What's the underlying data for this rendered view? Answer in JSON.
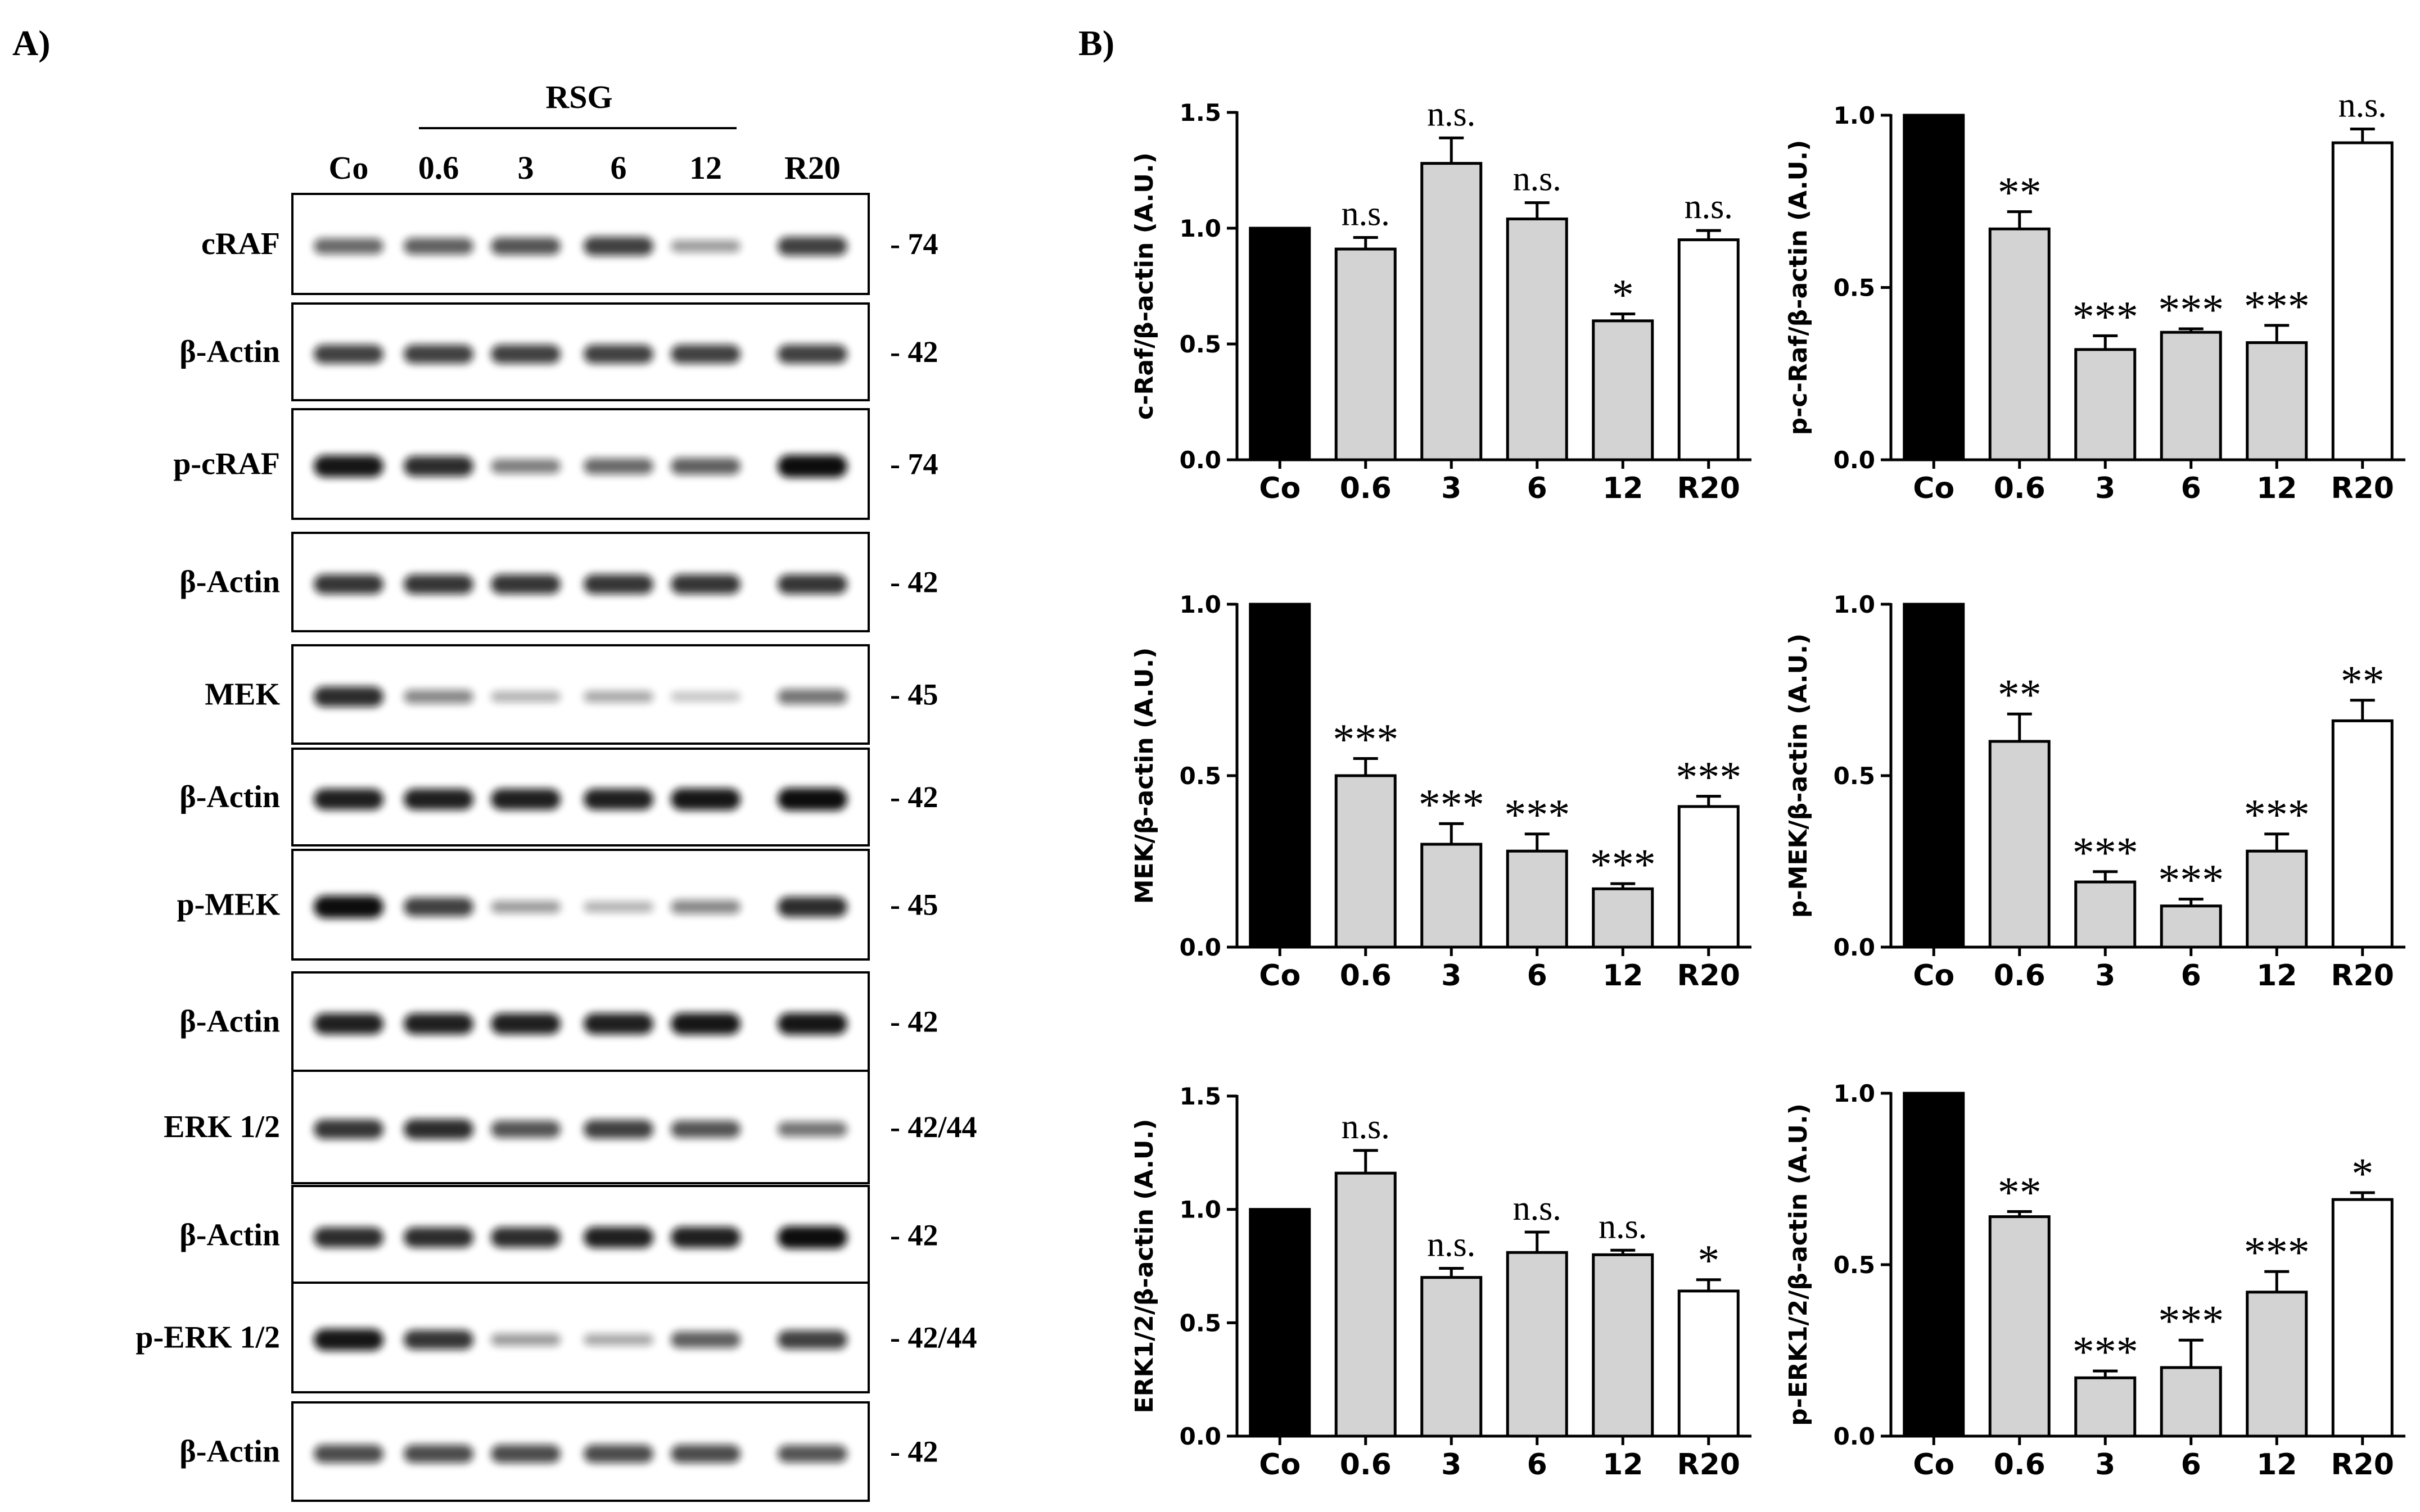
{
  "panels": {
    "a_label": "A)",
    "b_label": "B)"
  },
  "blot": {
    "group_label": "RSG",
    "lanes": [
      "Co",
      "0.6",
      "3",
      "6",
      "12",
      "R20"
    ],
    "rows": [
      {
        "label": "cRAF",
        "mw": "- 74",
        "intensity": [
          0.55,
          0.6,
          0.65,
          0.75,
          0.3,
          0.75
        ]
      },
      {
        "label": "β-Actin",
        "mw": "- 42",
        "intensity": [
          0.75,
          0.75,
          0.75,
          0.75,
          0.75,
          0.75
        ]
      },
      {
        "label": "p-cRAF",
        "mw": "- 74",
        "intensity": [
          0.95,
          0.85,
          0.45,
          0.55,
          0.6,
          1.0
        ]
      },
      {
        "label": "β-Actin",
        "mw": "- 42",
        "intensity": [
          0.8,
          0.8,
          0.8,
          0.8,
          0.8,
          0.8
        ]
      },
      {
        "label": "MEK",
        "mw": "- 45",
        "intensity": [
          0.85,
          0.4,
          0.2,
          0.25,
          0.12,
          0.5
        ]
      },
      {
        "label": "β-Actin",
        "mw": "- 42",
        "intensity": [
          0.9,
          0.9,
          0.9,
          0.9,
          0.95,
          1.0
        ]
      },
      {
        "label": "p-MEK",
        "mw": "- 45",
        "intensity": [
          1.0,
          0.75,
          0.3,
          0.2,
          0.4,
          0.85
        ]
      },
      {
        "label": "β-Actin",
        "mw": "- 42",
        "intensity": [
          0.9,
          0.9,
          0.9,
          0.9,
          0.95,
          0.95
        ]
      },
      {
        "label": "ERK  1/2",
        "mw": "- 42/44",
        "intensity": [
          0.8,
          0.85,
          0.65,
          0.75,
          0.65,
          0.5
        ]
      },
      {
        "label": "β-Actin",
        "mw": "- 42",
        "intensity": [
          0.85,
          0.85,
          0.85,
          0.9,
          0.9,
          1.0
        ]
      },
      {
        "label": "p-ERK  1/2",
        "mw": "- 42/44",
        "intensity": [
          0.95,
          0.8,
          0.3,
          0.25,
          0.6,
          0.75
        ]
      },
      {
        "label": "β-Actin",
        "mw": "- 42",
        "intensity": [
          0.7,
          0.7,
          0.7,
          0.7,
          0.7,
          0.65
        ]
      }
    ]
  },
  "colors": {
    "control_bar": "#000000",
    "rsg_bar": "#d3d3d3",
    "r20_bar": "#ffffff",
    "band": "#111111"
  },
  "chart_data": [
    {
      "type": "bar",
      "ylabel": "c-Raf/β-actin (A.U.)",
      "categories": [
        "Co",
        "0.6",
        "3",
        "6",
        "12",
        "R20"
      ],
      "values": [
        1.0,
        0.91,
        1.28,
        1.04,
        0.6,
        0.95
      ],
      "errors": [
        0,
        0.05,
        0.11,
        0.07,
        0.03,
        0.04
      ],
      "significance": [
        "",
        "n.s.",
        "n.s.",
        "n.s.",
        "*",
        "n.s."
      ],
      "ylim": [
        0,
        1.5
      ],
      "yticks": [
        "0.0",
        "0.5",
        "1.0",
        "1.5"
      ]
    },
    {
      "type": "bar",
      "ylabel": "p-c-Raf/β-actin (A.U.)",
      "categories": [
        "Co",
        "0.6",
        "3",
        "6",
        "12",
        "R20"
      ],
      "values": [
        1.0,
        0.67,
        0.32,
        0.37,
        0.34,
        0.92
      ],
      "errors": [
        0,
        0.05,
        0.04,
        0.01,
        0.05,
        0.04
      ],
      "significance": [
        "",
        "**",
        "***",
        "***",
        "***",
        "n.s."
      ],
      "ylim": [
        0,
        1.0
      ],
      "yticks": [
        "0.0",
        "0.5",
        "1.0"
      ]
    },
    {
      "type": "bar",
      "ylabel": "MEK/β-actin (A.U.)",
      "categories": [
        "Co",
        "0.6",
        "3",
        "6",
        "12",
        "R20"
      ],
      "values": [
        1.0,
        0.5,
        0.3,
        0.28,
        0.17,
        0.41
      ],
      "errors": [
        0,
        0.05,
        0.06,
        0.05,
        0.015,
        0.03
      ],
      "significance": [
        "",
        "***",
        "***",
        "***",
        "***",
        "***"
      ],
      "ylim": [
        0,
        1.0
      ],
      "yticks": [
        "0.0",
        "0.5",
        "1.0"
      ]
    },
    {
      "type": "bar",
      "ylabel": "p-MEK/β-actin (A.U.)",
      "categories": [
        "Co",
        "0.6",
        "3",
        "6",
        "12",
        "R20"
      ],
      "values": [
        1.0,
        0.6,
        0.19,
        0.12,
        0.28,
        0.66
      ],
      "errors": [
        0,
        0.08,
        0.03,
        0.02,
        0.05,
        0.06
      ],
      "significance": [
        "",
        "**",
        "***",
        "***",
        "***",
        "**"
      ],
      "ylim": [
        0,
        1.0
      ],
      "yticks": [
        "0.0",
        "0.5",
        "1.0"
      ]
    },
    {
      "type": "bar",
      "ylabel": "ERK1/2/β-actin (A.U.)",
      "categories": [
        "Co",
        "0.6",
        "3",
        "6",
        "12",
        "R20"
      ],
      "values": [
        1.0,
        1.16,
        0.7,
        0.81,
        0.8,
        0.64
      ],
      "errors": [
        0,
        0.1,
        0.04,
        0.09,
        0.02,
        0.05
      ],
      "significance": [
        "",
        "n.s.",
        "n.s.",
        "n.s.",
        "n.s.",
        "*"
      ],
      "ylim": [
        0,
        1.5
      ],
      "yticks": [
        "0.0",
        "0.5",
        "1.0",
        "1.5"
      ]
    },
    {
      "type": "bar",
      "ylabel": "p-ERK1/2/β-actin (A.U.)",
      "categories": [
        "Co",
        "0.6",
        "3",
        "6",
        "12",
        "R20"
      ],
      "values": [
        1.0,
        0.64,
        0.17,
        0.2,
        0.42,
        0.69
      ],
      "errors": [
        0,
        0.015,
        0.02,
        0.08,
        0.06,
        0.02
      ],
      "significance": [
        "",
        "**",
        "***",
        "***",
        "***",
        "*"
      ],
      "ylim": [
        0,
        1.0
      ],
      "yticks": [
        "0.0",
        "0.5",
        "1.0"
      ]
    }
  ]
}
